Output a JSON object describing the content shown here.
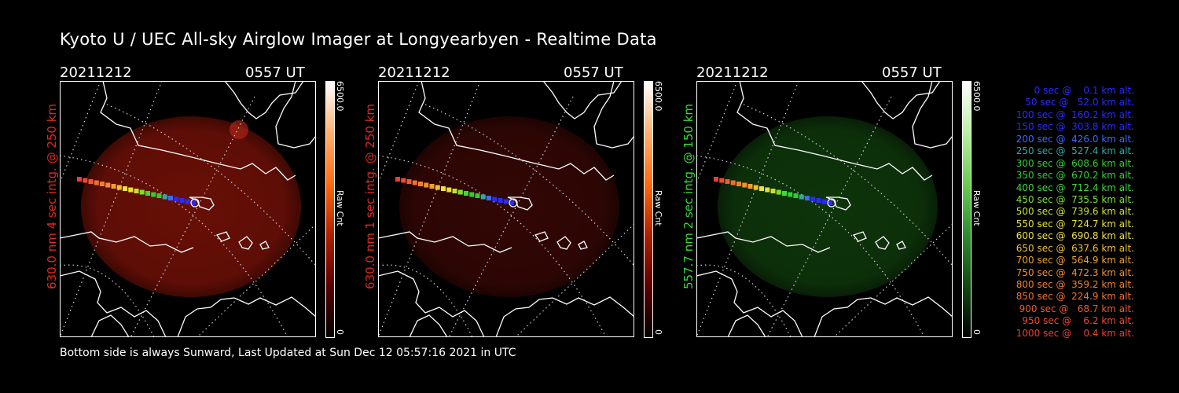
{
  "title": "Kyoto U / UEC All-sky Airglow Imager at Longyearbyen - Realtime Data",
  "panels": [
    {
      "date": "20211212",
      "time": "0557 UT",
      "ylabel": "630.0 nm 4 sec intg. @ 250 km",
      "label_color": "#e0281e",
      "cbar_max": "6500.0",
      "cbar_min": "0",
      "cbar_unit": "Raw Cnt",
      "cbar_gradient": [
        "#000000",
        "#5a0000",
        "#b02000",
        "#ff6a10",
        "#ffb070",
        "#ffffff"
      ],
      "glow_color": "#7a1208",
      "glow_opacity": 0.85
    },
    {
      "date": "20211212",
      "time": "0557 UT",
      "ylabel": "630.0 nm 1 sec intg. @ 250 km",
      "label_color": "#e0281e",
      "cbar_max": "6500.0",
      "cbar_min": "0",
      "cbar_unit": "Raw Cnt",
      "cbar_gradient": [
        "#000000",
        "#5a0000",
        "#b02000",
        "#ff6a10",
        "#ffb070",
        "#ffffff"
      ],
      "glow_color": "#3a0805",
      "glow_opacity": 0.85
    },
    {
      "date": "20211212",
      "time": "0557 UT",
      "ylabel": "557.7 nm 2 sec intg. @ 150 km",
      "label_color": "#38d838",
      "cbar_max": "6500.0",
      "cbar_min": "0",
      "cbar_unit": "Raw Cnt",
      "cbar_gradient": [
        "#000000",
        "#104a10",
        "#2e8c2e",
        "#6acc50",
        "#b8f0a0",
        "#ffffff"
      ],
      "glow_color": "#0f3a0c",
      "glow_opacity": 0.9
    }
  ],
  "legend": [
    {
      "text": "   0 sec @    0.1 km alt.",
      "color": "#2a2aff"
    },
    {
      "text": "  50 sec @   52.0 km alt.",
      "color": "#2a2aff"
    },
    {
      "text": " 100 sec @  160.2 km alt.",
      "color": "#2a2aff"
    },
    {
      "text": " 150 sec @  303.8 km alt.",
      "color": "#2a2aff"
    },
    {
      "text": " 200 sec @  426.0 km alt.",
      "color": "#3a6aff"
    },
    {
      "text": " 250 sec @  527.4 km alt.",
      "color": "#30a8a8"
    },
    {
      "text": " 300 sec @  608.6 km alt.",
      "color": "#32cd32"
    },
    {
      "text": " 350 sec @  670.2 km alt.",
      "color": "#32cd32"
    },
    {
      "text": " 400 sec @  712.4 km alt.",
      "color": "#40d840"
    },
    {
      "text": " 450 sec @  735.5 km alt.",
      "color": "#7ae030"
    },
    {
      "text": " 500 sec @  739.6 km alt.",
      "color": "#c8e030"
    },
    {
      "text": " 550 sec @  724.7 km alt.",
      "color": "#e8e030"
    },
    {
      "text": " 600 sec @  690.8 km alt.",
      "color": "#f0e040"
    },
    {
      "text": " 650 sec @  637.6 km alt.",
      "color": "#f0c030"
    },
    {
      "text": " 700 sec @  564.9 km alt.",
      "color": "#f0a030"
    },
    {
      "text": " 750 sec @  472.3 km alt.",
      "color": "#f09030"
    },
    {
      "text": " 800 sec @  359.2 km alt.",
      "color": "#f08030"
    },
    {
      "text": " 850 sec @  224.9 km alt.",
      "color": "#f07030"
    },
    {
      "text": " 900 sec @   68.7 km alt.",
      "color": "#f05a30"
    },
    {
      "text": " 950 sec @    6.2 km alt.",
      "color": "#f04830"
    },
    {
      "text": "1000 sec @    0.4 km alt.",
      "color": "#f03c30"
    }
  ],
  "footer": "Bottom side is always Sunward, Last Updated at Sun Dec 12 05:57:16 2021 in UTC"
}
